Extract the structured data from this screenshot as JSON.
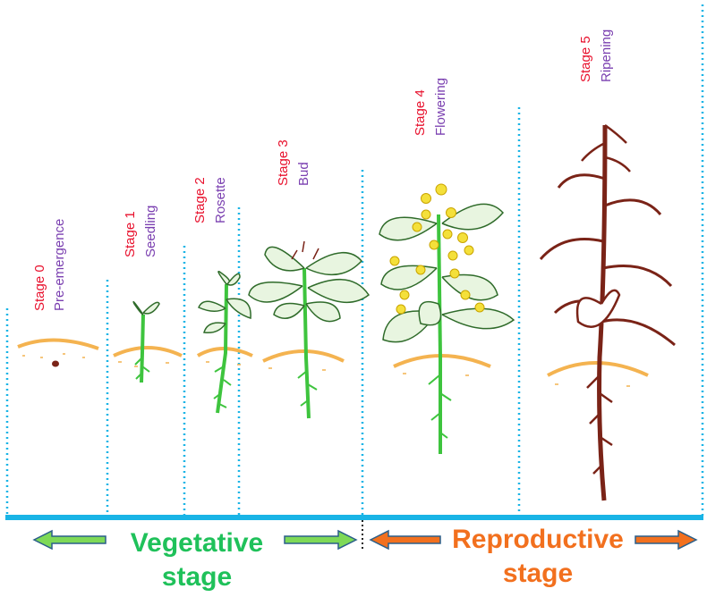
{
  "stages": [
    {
      "number": "Stage 0",
      "name": "Pre-emergence"
    },
    {
      "number": "Stage 1",
      "name": "Seedling"
    },
    {
      "number": "Stage 2",
      "name": "Rosette"
    },
    {
      "number": "Stage 3",
      "name": "Bud"
    },
    {
      "number": "Stage 4",
      "name": "Flowering"
    },
    {
      "number": "Stage 5",
      "name": "Ripening"
    }
  ],
  "phases": {
    "vegetative": {
      "line1": "Vegetative",
      "line2": "stage"
    },
    "reproductive": {
      "line1": "Reproductive",
      "line2": "stage"
    }
  },
  "colors": {
    "stage_number": "#e8112d",
    "stage_name": "#7a3fb0",
    "vegetative": "#1fc15a",
    "reproductive": "#f2701e",
    "baseline": "#19b4e6",
    "soil": "#f4b350",
    "root_green": "#3ec43e",
    "mature_plant": "#7a2317",
    "flower": "#f4e03a"
  },
  "icons": [
    "left-arrow-green-icon",
    "right-arrow-green-icon",
    "left-arrow-orange-icon",
    "right-arrow-orange-icon"
  ]
}
